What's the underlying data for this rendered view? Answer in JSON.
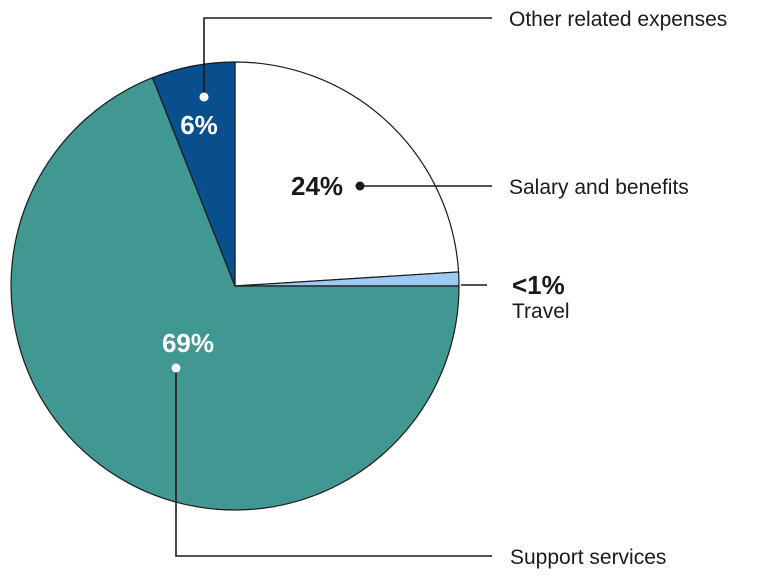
{
  "chart_data": {
    "type": "pie",
    "slices": [
      {
        "name": "Salary and benefits",
        "value": 24,
        "value_label": "24%",
        "color": "#ffffff",
        "text_color": "#1a1a1a"
      },
      {
        "name": "Travel",
        "value": 1,
        "value_label": "<1%",
        "color": "#9ec9f2",
        "text_color": "#1a1a1a"
      },
      {
        "name": "Support services",
        "value": 69,
        "value_label": "69%",
        "color": "#419893",
        "text_color": "#ffffff"
      },
      {
        "name": "Other related expenses",
        "value": 6,
        "value_label": "6%",
        "color": "#084f8e",
        "text_color": "#ffffff"
      }
    ],
    "start": "12 o'clock",
    "direction": "clockwise"
  }
}
